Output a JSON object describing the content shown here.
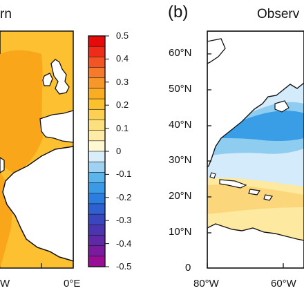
{
  "panel_a": {
    "title_fragment": "rn",
    "x_ticks": [
      "W",
      "0°E"
    ],
    "colors": {
      "warm": "#fcc030",
      "orange": "#f9a61b",
      "land": "#ffffff"
    }
  },
  "panel_b": {
    "label": "(b)",
    "title_fragment": "Observ",
    "lat_ticks": [
      "60°N",
      "50°N",
      "40°N",
      "30°N",
      "20°N",
      "10°N",
      "0"
    ],
    "lon_ticks": [
      "80°W",
      "60°W"
    ],
    "colors": {
      "light_blue": "#d4ebfb",
      "mid_blue": "#8fcdf0",
      "blue": "#3a9ee6",
      "pale_yellow": "#fde9a0",
      "yellow": "#fcd67a"
    }
  },
  "colorbar": {
    "labels": [
      "0.5",
      "0.4",
      "0.3",
      "0.2",
      "0.1",
      "0",
      "-0.1",
      "-0.2",
      "-0.3",
      "-0.4",
      "-0.5"
    ],
    "colors": [
      "#e80a0a",
      "#ee2c18",
      "#f25424",
      "#f57a2c",
      "#f7962a",
      "#f9ad22",
      "#fbc02e",
      "#fcd052",
      "#fde07e",
      "#feeca6",
      "#fff6d2",
      "#d9eef9",
      "#9fd2f2",
      "#5cb4ec",
      "#3b9ae6",
      "#2b7ee0",
      "#2f60d0",
      "#3a46c0",
      "#4b34b0",
      "#5f28a6",
      "#7a1a9c",
      "#9a0e96"
    ]
  }
}
